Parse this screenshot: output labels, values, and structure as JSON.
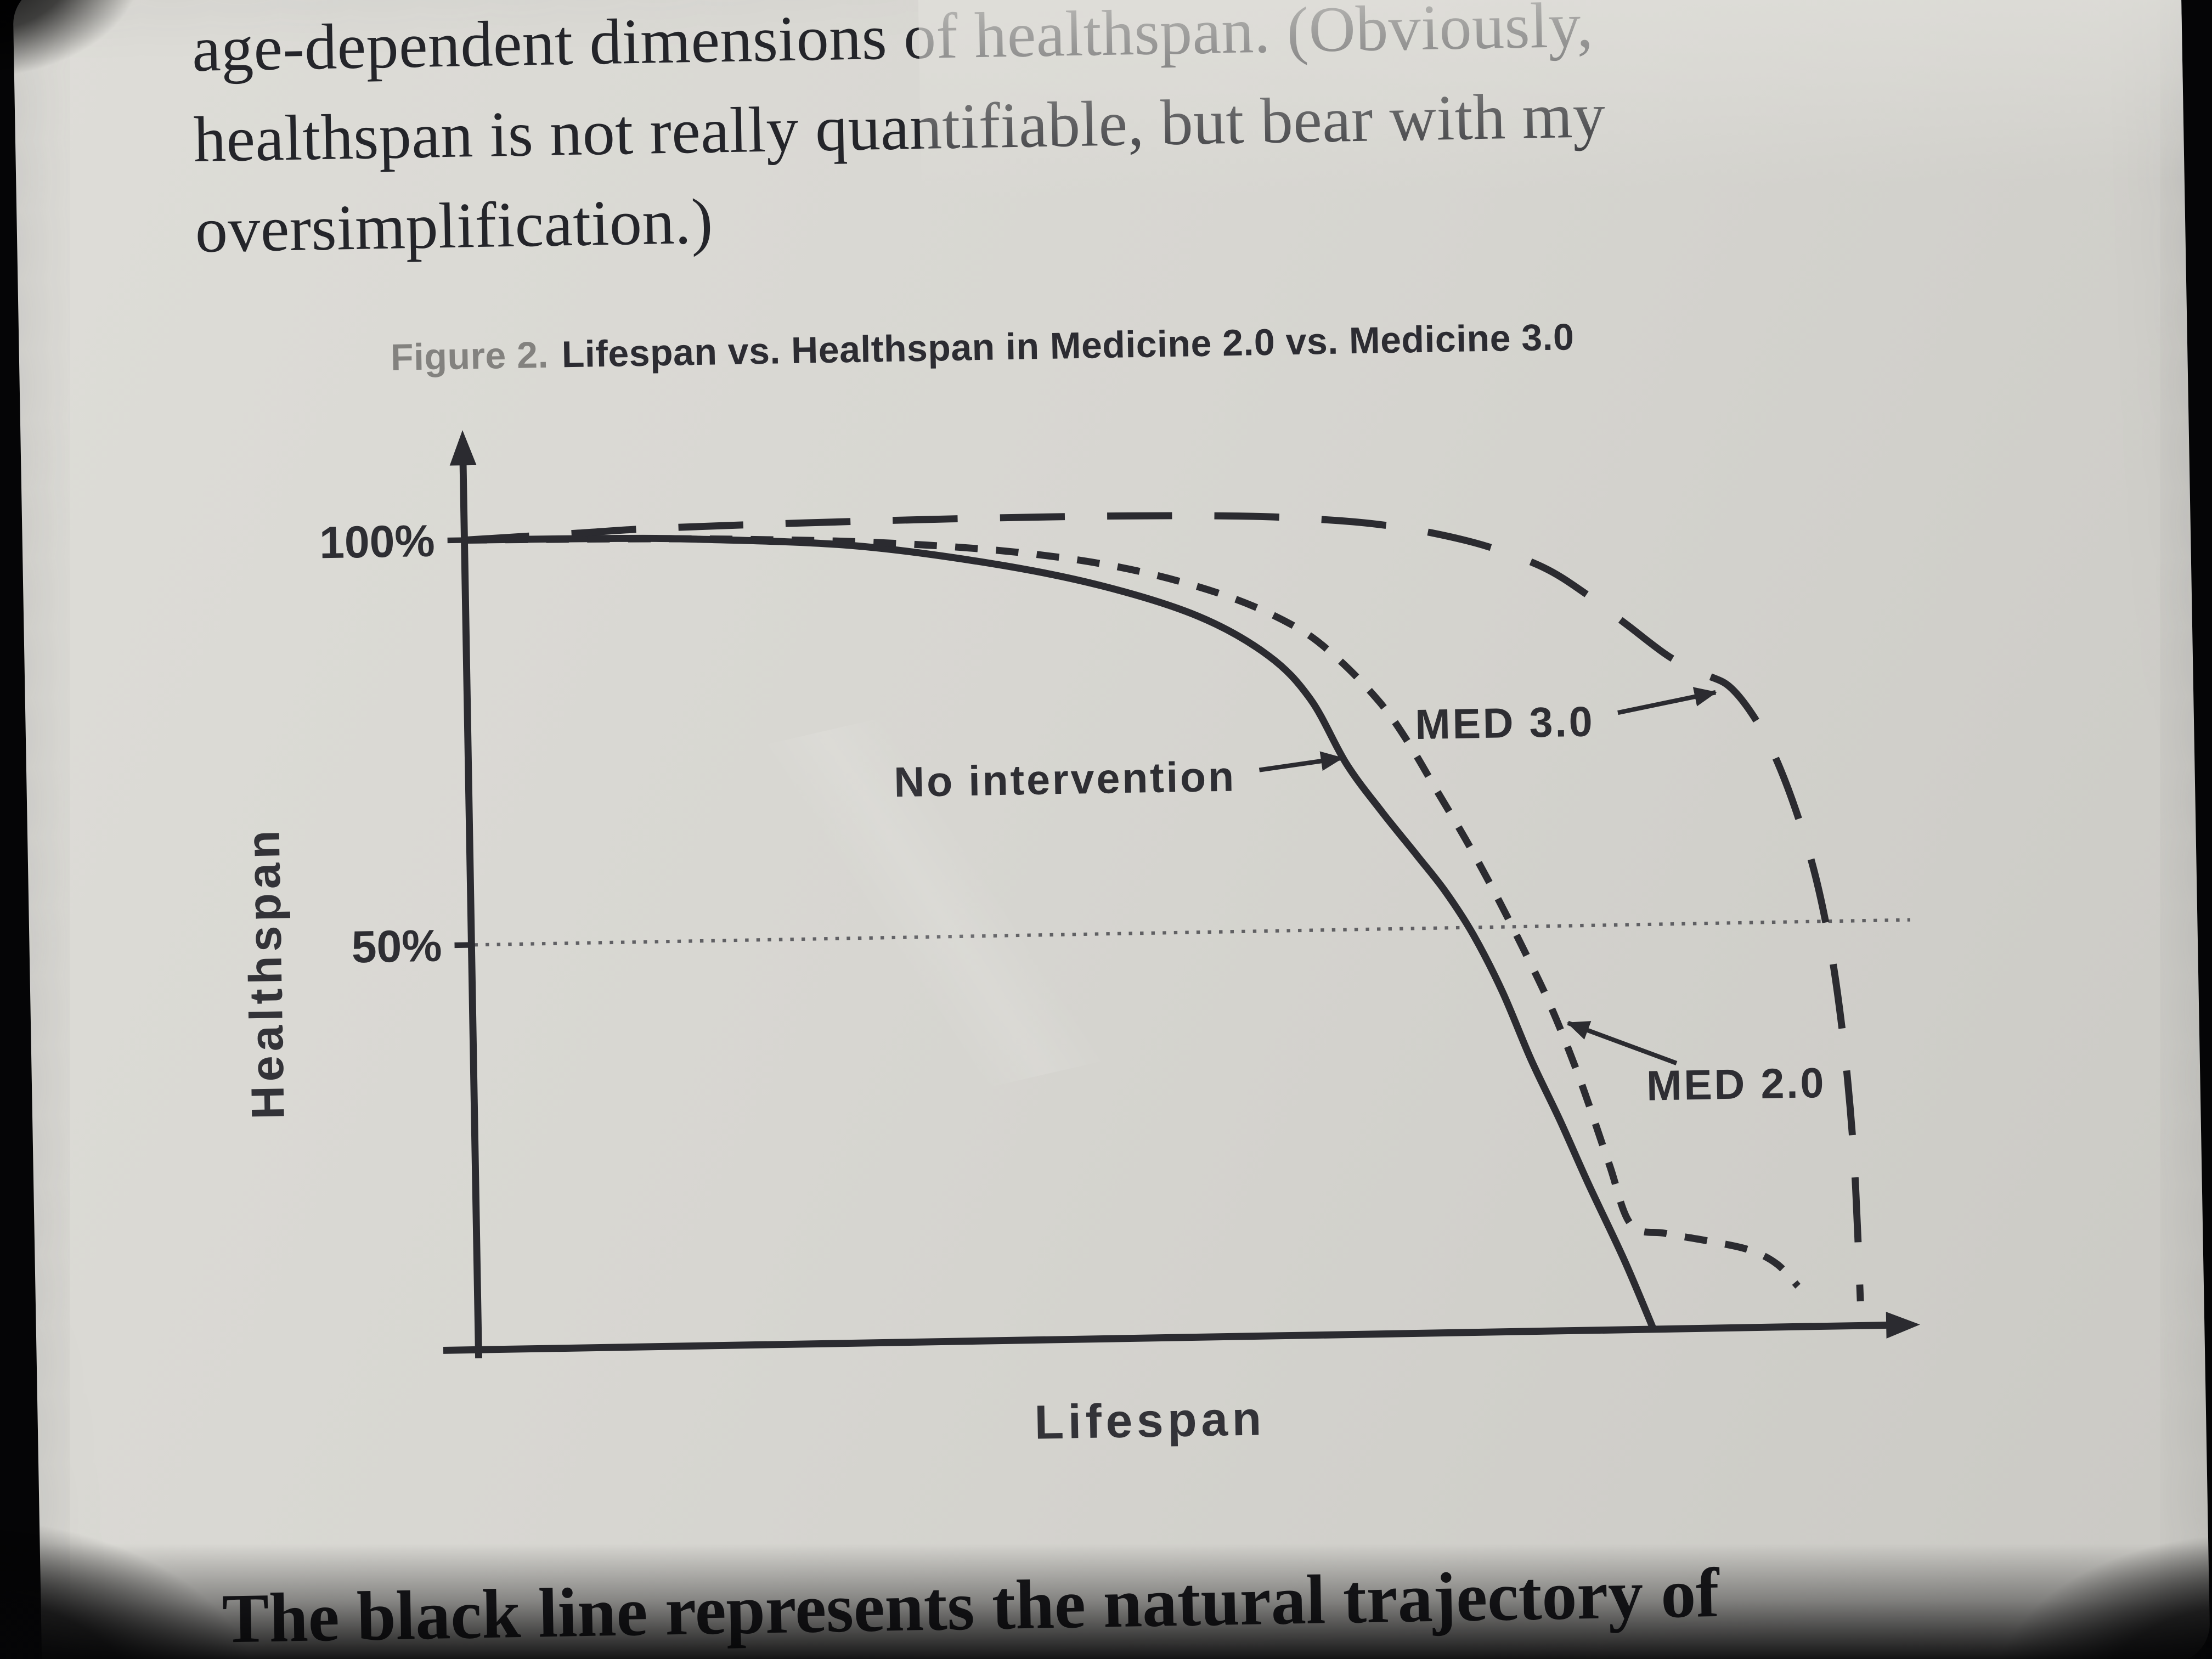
{
  "colors": {
    "page_bg": "#d7d6d1",
    "ink": "#24252a",
    "caption_gray": "#83827f",
    "caption_ink": "#2c2c32",
    "chart_ink": "#2b2b30"
  },
  "top_paragraph": {
    "lines": [
      "age-dependent dimensions of healthspan. (Obviously,",
      "healthspan is not really quantifiable, but bear with my",
      "oversimplification.)"
    ]
  },
  "figure_caption": {
    "prefix": "Figure 2.",
    "title": "Lifespan vs. Healthspan in Medicine 2.0 vs. Medicine 3.0"
  },
  "bottom_paragraph": "The black line represents the natural trajectory of",
  "chart_data": {
    "type": "line",
    "title": "Figure 2. Lifespan vs. Healthspan in Medicine 2.0 vs. Medicine 3.0",
    "xlabel": "Lifespan",
    "ylabel": "Healthspan",
    "grid": false,
    "legend_position": "none",
    "x_axis": {
      "label": "Lifespan",
      "range": [
        0,
        100
      ],
      "ticks": []
    },
    "y_axis": {
      "label": "Healthspan",
      "range": [
        0,
        100
      ],
      "ticks": [
        {
          "value": 100,
          "label": "100%"
        },
        {
          "value": 50,
          "label": "50%"
        }
      ]
    },
    "reference_lines": [
      {
        "axis": "y",
        "value": 50,
        "style": "dotted"
      }
    ],
    "series": [
      {
        "name": "No intervention",
        "style": "solid",
        "points": [
          [
            0,
            100
          ],
          [
            10,
            99.9
          ],
          [
            17,
            99.6
          ],
          [
            28,
            98.5
          ],
          [
            38,
            96
          ],
          [
            46,
            93
          ],
          [
            53,
            89
          ],
          [
            58,
            84
          ],
          [
            61,
            78.5
          ],
          [
            63.5,
            70.5
          ],
          [
            66,
            64.5
          ],
          [
            68.5,
            59
          ],
          [
            70.5,
            54.5
          ],
          [
            72.5,
            49
          ],
          [
            74.5,
            42
          ],
          [
            76.5,
            33.5
          ],
          [
            78.5,
            26
          ],
          [
            80.5,
            18
          ],
          [
            83,
            8.5
          ],
          [
            85,
            0
          ]
        ]
      },
      {
        "name": "MED 2.0",
        "style": "dashed",
        "points": [
          [
            0,
            100
          ],
          [
            12,
            99.8
          ],
          [
            20,
            99.5
          ],
          [
            30,
            98.8
          ],
          [
            40,
            97.3
          ],
          [
            48,
            95
          ],
          [
            55,
            91.5
          ],
          [
            60,
            87.5
          ],
          [
            63,
            83.5
          ],
          [
            66,
            78
          ],
          [
            68,
            73
          ],
          [
            70,
            67
          ],
          [
            72,
            61
          ],
          [
            74,
            54.5
          ],
          [
            76,
            47.5
          ],
          [
            78,
            40
          ],
          [
            80,
            31
          ],
          [
            82,
            20.5
          ],
          [
            83.5,
            13
          ],
          [
            86,
            11.8
          ],
          [
            89,
            10.8
          ],
          [
            92,
            9.6
          ],
          [
            94,
            7.8
          ],
          [
            95.5,
            5
          ]
        ]
      },
      {
        "name": "MED 3.0",
        "style": "long-dashed",
        "points": [
          [
            0,
            100
          ],
          [
            8,
            100.6
          ],
          [
            15,
            101.1
          ],
          [
            30,
            101.5
          ],
          [
            45,
            101.6
          ],
          [
            56,
            101.3
          ],
          [
            62,
            100.7
          ],
          [
            66,
            100
          ],
          [
            70,
            98.8
          ],
          [
            74,
            97
          ],
          [
            78,
            94.3
          ],
          [
            81,
            91
          ],
          [
            84,
            87
          ],
          [
            87,
            83
          ],
          [
            89.5,
            80.8
          ],
          [
            91.3,
            79.2
          ],
          [
            93,
            75.5
          ],
          [
            94.5,
            70.5
          ],
          [
            96,
            63.5
          ],
          [
            97.3,
            55.5
          ],
          [
            98.3,
            46.5
          ],
          [
            99,
            37
          ],
          [
            99.5,
            27
          ],
          [
            99.8,
            17
          ],
          [
            100,
            3
          ]
        ]
      }
    ],
    "annotations": [
      {
        "text": "No intervention",
        "anchor": "end",
        "text_pos": [
          55.5,
          69.3
        ],
        "arrow_from": [
          57.2,
          69.9
        ],
        "arrow_to": [
          63.2,
          71.2
        ]
      },
      {
        "text": "MED 3.0",
        "anchor": "end",
        "text_pos": [
          81.5,
          75.3
        ],
        "arrow_from": [
          83.2,
          76.2
        ],
        "arrow_to": [
          90.3,
          78.5
        ]
      },
      {
        "text": "MED 2.0",
        "anchor": "start",
        "text_pos": [
          84.8,
          30.2
        ],
        "arrow_from": [
          87.0,
          32.8
        ],
        "arrow_to": [
          79.2,
          38.0
        ]
      }
    ]
  }
}
